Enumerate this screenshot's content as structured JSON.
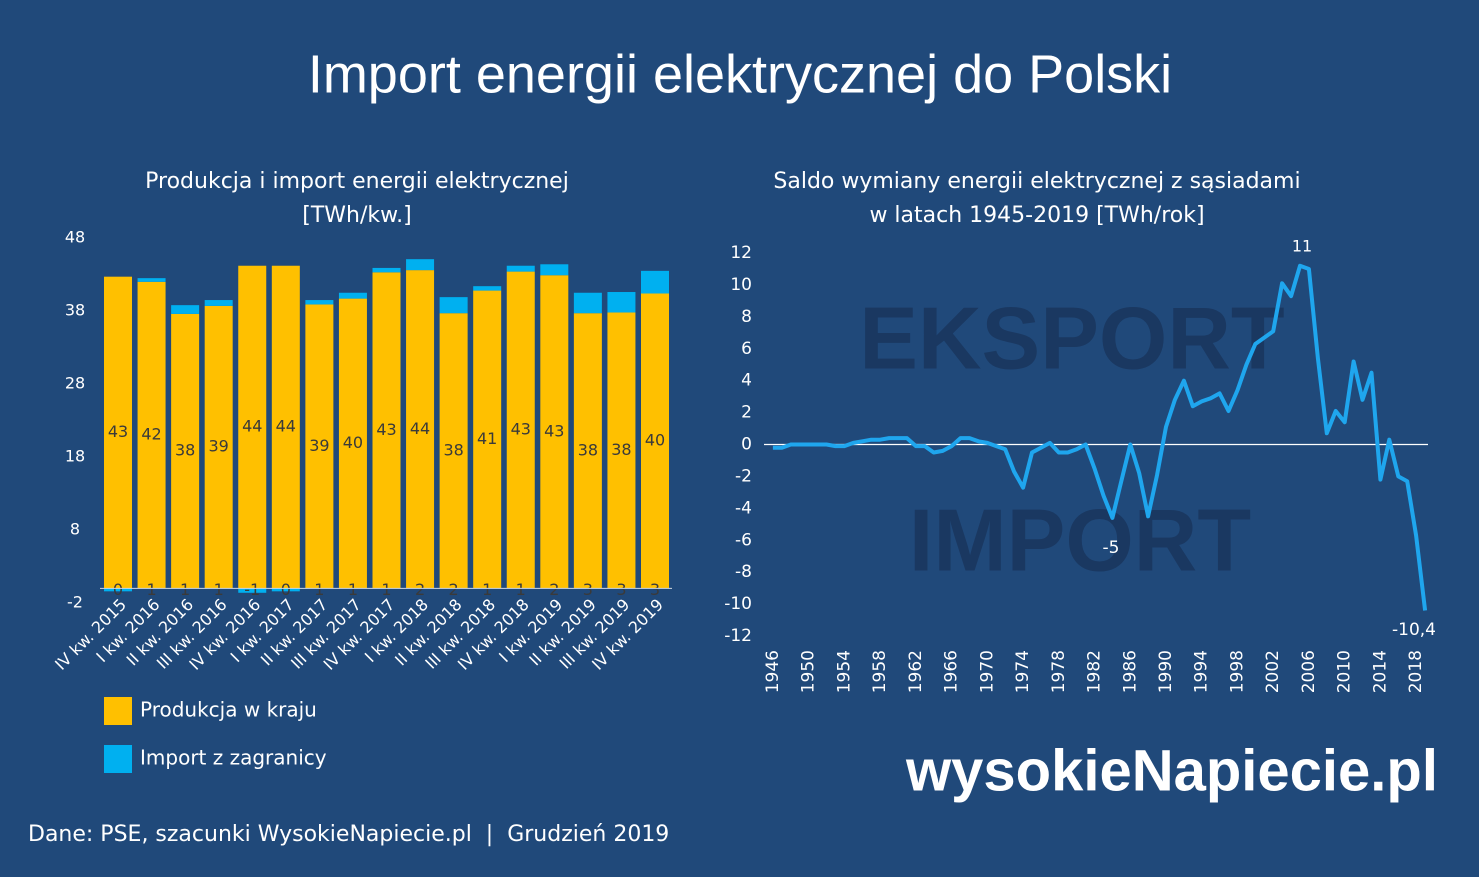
{
  "title": "Import energii elektrycznej do Polski",
  "chart_data": [
    {
      "type": "bar",
      "stacked": true,
      "title": [
        "Produkcja i import energii elektrycznej",
        "[TWh/kw.]"
      ],
      "categories": [
        "IV kw. 2015",
        "I kw. 2016",
        "II kw. 2016",
        "III kw. 2016",
        "IV kw. 2016",
        "I kw. 2017",
        "II kw. 2017",
        "III kw. 2017",
        "IV kw. 2017",
        "I kw. 2018",
        "II kw. 2018",
        "III kw. 2018",
        "IV kw. 2018",
        "I kw. 2019",
        "II kw. 2019",
        "III kw. 2019",
        "IV kw. 2019"
      ],
      "series": [
        {
          "name": "Produkcja w kraju",
          "color": "#ffc000",
          "values": [
            42.7,
            42.0,
            37.6,
            38.7,
            44.2,
            44.2,
            38.9,
            39.7,
            43.3,
            43.6,
            37.7,
            40.8,
            43.4,
            42.9,
            37.7,
            37.8,
            40.4
          ],
          "value_labels": [
            "43",
            "42",
            "38",
            "39",
            "44",
            "44",
            "39",
            "40",
            "43",
            "44",
            "38",
            "41",
            "43",
            "43",
            "38",
            "38",
            "40"
          ]
        },
        {
          "name": "Import z zagranicy",
          "color": "#00b0f0",
          "values": [
            -0.4,
            0.5,
            1.2,
            0.8,
            -0.6,
            -0.4,
            0.6,
            0.8,
            0.6,
            1.5,
            2.2,
            0.6,
            0.8,
            1.5,
            2.8,
            2.8,
            3.1
          ],
          "value_labels": [
            "0",
            "1",
            "1",
            "1",
            "-1",
            "0",
            "1",
            "1",
            "1",
            "2",
            "2",
            "1",
            "1",
            "2",
            "3",
            "3",
            "3"
          ]
        }
      ],
      "ylim": [
        -2,
        48
      ],
      "yticks": [
        -2,
        8,
        18,
        28,
        38,
        48
      ],
      "grid": false
    },
    {
      "type": "line",
      "title": [
        "Saldo wymiany energii elektrycznej z sąsiadami",
        "w latach 1945-2019 [TWh/rok]"
      ],
      "x": [
        1946,
        1947,
        1948,
        1949,
        1950,
        1951,
        1952,
        1953,
        1954,
        1955,
        1956,
        1957,
        1958,
        1959,
        1960,
        1961,
        1962,
        1963,
        1964,
        1965,
        1966,
        1967,
        1968,
        1969,
        1970,
        1971,
        1972,
        1973,
        1974,
        1975,
        1976,
        1977,
        1978,
        1979,
        1980,
        1981,
        1982,
        1983,
        1984,
        1985,
        1986,
        1987,
        1988,
        1989,
        1990,
        1991,
        1992,
        1993,
        1994,
        1995,
        1996,
        1997,
        1998,
        1999,
        2000,
        2001,
        2002,
        2003,
        2004,
        2005,
        2006,
        2007,
        2008,
        2009,
        2010,
        2011,
        2012,
        2013,
        2014,
        2015,
        2016,
        2017,
        2018,
        2019
      ],
      "values": [
        -0.2,
        -0.2,
        0,
        0,
        0,
        0,
        0,
        -0.1,
        -0.1,
        0.1,
        0.2,
        0.3,
        0.3,
        0.4,
        0.4,
        0.4,
        -0.1,
        -0.1,
        -0.5,
        -0.4,
        -0.1,
        0.4,
        0.4,
        0.2,
        0.1,
        -0.1,
        -0.3,
        -1.7,
        -2.7,
        -0.5,
        -0.2,
        0.1,
        -0.5,
        -0.5,
        -0.3,
        0,
        -1.5,
        -3.2,
        -4.6,
        -2.3,
        0,
        -1.8,
        -4.5,
        -1.9,
        1.1,
        2.8,
        4.0,
        2.4,
        2.7,
        2.9,
        3.2,
        2.1,
        3.4,
        5.0,
        6.3,
        6.7,
        7.1,
        10.1,
        9.3,
        11.2,
        11.0,
        5.4,
        0.7,
        2.1,
        1.4,
        5.2,
        2.8,
        4.5,
        -2.2,
        0.3,
        -2.0,
        -2.3,
        -5.7,
        -10.4
      ],
      "color": "#1fa6ee",
      "xlim": [
        1945,
        2020
      ],
      "xticks": [
        1946,
        1950,
        1954,
        1958,
        1962,
        1966,
        1970,
        1974,
        1978,
        1982,
        1986,
        1990,
        1994,
        1998,
        2002,
        2006,
        2010,
        2014,
        2018
      ],
      "ylim": [
        -12,
        12
      ],
      "yticks": [
        -12,
        -10,
        -8,
        -6,
        -4,
        -2,
        0,
        2,
        4,
        6,
        8,
        10,
        12
      ],
      "zero_line": true,
      "annotations": [
        "11",
        "-5",
        "-10,4",
        "EKSPORT",
        "IMPORT"
      ]
    }
  ],
  "source": "Dane: PSE, szacunki WysokieNapiecie.pl  |  Grudzień 2019",
  "logo": "wysokieNapiecie.pl"
}
